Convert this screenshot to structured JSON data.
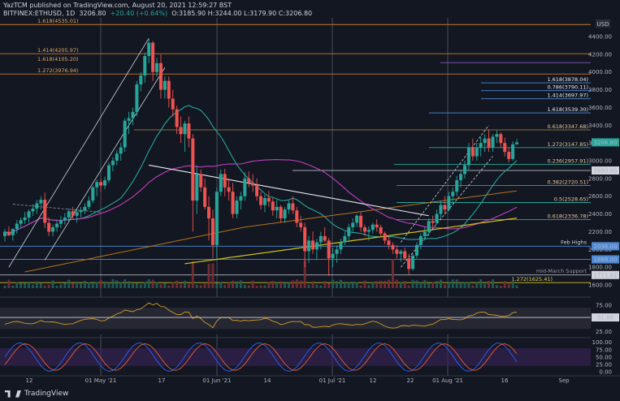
{
  "header": {
    "published": "YazTCM published on TradingView.com, August 20, 2021 12:59:27 BST",
    "symbol": "BITFINEX:ETHUSD, 1D",
    "last": "3206.80",
    "change": "+20.40 (+0.64%)",
    "ohlc": "O:3185.90 H:3244.00 L:3179.90 C:3206.80"
  },
  "footer": {
    "brand": "TradingView"
  },
  "colors": {
    "bg": "#131722",
    "up": "#26a69a",
    "down": "#ef5350",
    "sma20": "#26a69a",
    "sma50": "#c040c0",
    "sma100": "#b5731e",
    "sma200": "#d4c21a",
    "fib": "#c87a2a",
    "text": "#d1d4dc"
  },
  "chart_data": {
    "type": "candlestick",
    "currency": "USD",
    "interval": "1D",
    "x_tick_labels": [
      "12",
      "01 May '21",
      "17",
      "01 Jun '21",
      "14",
      "01 Jul '21",
      "12",
      "22",
      "01 Aug '21",
      "16",
      "Sep"
    ],
    "y_tick_labels": [
      "4400.00",
      "4200.00",
      "4000.00",
      "3800.00",
      "3600.00",
      "3400.00",
      "3200.00",
      "3000.00",
      "2800.00",
      "2600.00",
      "2400.00",
      "2200.00",
      "2000.00",
      "1800.00",
      "1600.00"
    ],
    "ylim": [
      1580,
      4540
    ],
    "last_price_label": "3206.80",
    "price_tags": [
      "2890.00",
      "2036.00",
      "1888.00",
      "1711.82"
    ],
    "levels": [
      {
        "label": "1.618(4535.01)",
        "price": 4535.01
      },
      {
        "label": "1.414(4205.97)",
        "price": 4205.97
      },
      {
        "label": "1.272(3976.94)",
        "price": 3976.94
      },
      {
        "label": "1.618(4105.20)",
        "price": 4105.2
      },
      {
        "label": "1.618(3878.04)",
        "price": 3878.04
      },
      {
        "label": "0.786(3790.11)",
        "price": 3790.11
      },
      {
        "label": "1.414(3697.97)",
        "price": 3697.97
      },
      {
        "label": "1.618(3539.30)",
        "price": 3539.3
      },
      {
        "label": "0.618(3347.68)",
        "price": 3347.68
      },
      {
        "label": "1.272(3147.85)",
        "price": 3147.85
      },
      {
        "label": "0.236(2957.91)",
        "price": 2957.91
      },
      {
        "label": "0.382(2720.51)",
        "price": 2720.51
      },
      {
        "label": "0.5(2528.65)",
        "price": 2528.65
      },
      {
        "label": "0.618(2336.78)",
        "price": 2336.78
      },
      {
        "label": "1.272(1625.41)",
        "price": 1625.41
      }
    ],
    "annotations": [
      "Feb Highs",
      "mid-March Support"
    ],
    "rsi": {
      "value_label": "51.88",
      "value": 51.88,
      "ylim": [
        20,
        90
      ],
      "ticks": [
        "75.00",
        "50.00",
        "25.00"
      ]
    },
    "stoch": {
      "ylim": [
        -5,
        110
      ],
      "ticks": [
        "100.00",
        "75.00",
        "50.00",
        "25.00",
        "0.00"
      ]
    },
    "candles_ohlc": [
      [
        2150,
        2230,
        2090,
        2200
      ],
      [
        2200,
        2260,
        2150,
        2160
      ],
      [
        2160,
        2240,
        2100,
        2230
      ],
      [
        2230,
        2330,
        2180,
        2290
      ],
      [
        2290,
        2360,
        2250,
        2330
      ],
      [
        2330,
        2420,
        2290,
        2360
      ],
      [
        2360,
        2450,
        2300,
        2430
      ],
      [
        2430,
        2510,
        2380,
        2460
      ],
      [
        2460,
        2560,
        2400,
        2520
      ],
      [
        2520,
        2600,
        2450,
        2560
      ],
      [
        2560,
        2640,
        2240,
        2300
      ],
      [
        2300,
        2360,
        2150,
        2200
      ],
      [
        2200,
        2280,
        2150,
        2250
      ],
      [
        2250,
        2340,
        2200,
        2290
      ],
      [
        2290,
        2380,
        2240,
        2330
      ],
      [
        2330,
        2410,
        2280,
        2360
      ],
      [
        2360,
        2460,
        2320,
        2430
      ],
      [
        2430,
        2480,
        2340,
        2380
      ],
      [
        2380,
        2450,
        2300,
        2420
      ],
      [
        2420,
        2480,
        2360,
        2440
      ],
      [
        2440,
        2520,
        2400,
        2480
      ],
      [
        2480,
        2600,
        2450,
        2550
      ],
      [
        2550,
        2720,
        2520,
        2700
      ],
      [
        2700,
        2790,
        2600,
        2760
      ],
      [
        2760,
        2800,
        2650,
        2720
      ],
      [
        2720,
        2820,
        2680,
        2780
      ],
      [
        2780,
        2980,
        2750,
        2950
      ],
      [
        2950,
        3040,
        2880,
        3000
      ],
      [
        3000,
        3120,
        2950,
        3080
      ],
      [
        3080,
        3200,
        3000,
        3150
      ],
      [
        3150,
        3480,
        3100,
        3450
      ],
      [
        3450,
        3550,
        3300,
        3480
      ],
      [
        3480,
        3600,
        3400,
        3550
      ],
      [
        3550,
        3900,
        3500,
        3860
      ],
      [
        3860,
        4000,
        3780,
        3960
      ],
      [
        3960,
        4220,
        3880,
        4180
      ],
      [
        4180,
        4380,
        4100,
        4330
      ],
      [
        4330,
        4350,
        3900,
        4000
      ],
      [
        4000,
        4160,
        3950,
        4100
      ],
      [
        4100,
        4200,
        3700,
        3800
      ],
      [
        3800,
        3950,
        3700,
        3900
      ],
      [
        3900,
        3950,
        3600,
        3700
      ],
      [
        3700,
        3800,
        3500,
        3580
      ],
      [
        3580,
        3620,
        3300,
        3380
      ],
      [
        3380,
        3500,
        3200,
        3300
      ],
      [
        3300,
        3450,
        3100,
        3420
      ],
      [
        3420,
        3500,
        3150,
        3250
      ],
      [
        3250,
        3300,
        2200,
        2550
      ],
      [
        2550,
        2950,
        2400,
        2850
      ],
      [
        2850,
        2900,
        2650,
        2700
      ],
      [
        2700,
        2800,
        2450,
        2480
      ],
      [
        2480,
        2600,
        2100,
        2350
      ],
      [
        2350,
        2450,
        1900,
        2050
      ],
      [
        2050,
        2700,
        1900,
        2650
      ],
      [
        2650,
        2900,
        2600,
        2850
      ],
      [
        2850,
        2910,
        2600,
        2700
      ],
      [
        2700,
        2800,
        2550,
        2650
      ],
      [
        2650,
        2750,
        2350,
        2400
      ],
      [
        2400,
        2600,
        2350,
        2550
      ],
      [
        2550,
        2650,
        2450,
        2600
      ],
      [
        2600,
        2870,
        2550,
        2800
      ],
      [
        2800,
        2880,
        2700,
        2750
      ],
      [
        2750,
        2850,
        2650,
        2720
      ],
      [
        2720,
        2800,
        2550,
        2600
      ],
      [
        2600,
        2650,
        2450,
        2500
      ],
      [
        2500,
        2620,
        2420,
        2580
      ],
      [
        2580,
        2660,
        2480,
        2540
      ],
      [
        2540,
        2580,
        2380,
        2440
      ],
      [
        2440,
        2560,
        2350,
        2480
      ],
      [
        2480,
        2500,
        2300,
        2350
      ],
      [
        2350,
        2480,
        2300,
        2450
      ],
      [
        2450,
        2550,
        2400,
        2520
      ],
      [
        2520,
        2600,
        2400,
        2440
      ],
      [
        2440,
        2480,
        2250,
        2300
      ],
      [
        2300,
        2380,
        2200,
        2250
      ],
      [
        2250,
        2300,
        1800,
        1980
      ],
      [
        1980,
        2150,
        1850,
        2100
      ],
      [
        2100,
        2200,
        1950,
        2000
      ],
      [
        2000,
        2120,
        1880,
        2080
      ],
      [
        2080,
        2200,
        2000,
        2150
      ],
      [
        2150,
        2250,
        2080,
        2100
      ],
      [
        2100,
        2130,
        1700,
        1900
      ],
      [
        1900,
        2020,
        1800,
        1950
      ],
      [
        1950,
        2050,
        1850,
        2000
      ],
      [
        2000,
        2120,
        1950,
        2080
      ],
      [
        2080,
        2200,
        2050,
        2150
      ],
      [
        2150,
        2290,
        2100,
        2250
      ],
      [
        2250,
        2350,
        2200,
        2300
      ],
      [
        2300,
        2400,
        2250,
        2380
      ],
      [
        2380,
        2420,
        2200,
        2250
      ],
      [
        2250,
        2280,
        2150,
        2200
      ],
      [
        2200,
        2260,
        2100,
        2220
      ],
      [
        2220,
        2300,
        2180,
        2280
      ],
      [
        2280,
        2340,
        2200,
        2250
      ],
      [
        2250,
        2280,
        2150,
        2180
      ],
      [
        2180,
        2200,
        2060,
        2100
      ],
      [
        2100,
        2150,
        2000,
        2050
      ],
      [
        2050,
        2080,
        1950,
        2000
      ],
      [
        2000,
        2050,
        1900,
        1950
      ],
      [
        1950,
        2000,
        1860,
        1980
      ],
      [
        1980,
        2020,
        1880,
        1900
      ],
      [
        1900,
        1950,
        1720,
        1780
      ],
      [
        1780,
        1950,
        1760,
        1930
      ],
      [
        1930,
        2080,
        1900,
        2050
      ],
      [
        2050,
        2180,
        2000,
        2150
      ],
      [
        2150,
        2250,
        2100,
        2200
      ],
      [
        2200,
        2350,
        2150,
        2320
      ],
      [
        2320,
        2380,
        2250,
        2300
      ],
      [
        2300,
        2450,
        2280,
        2400
      ],
      [
        2400,
        2550,
        2350,
        2500
      ],
      [
        2500,
        2600,
        2400,
        2450
      ],
      [
        2450,
        2650,
        2430,
        2600
      ],
      [
        2600,
        2700,
        2500,
        2650
      ],
      [
        2650,
        2830,
        2600,
        2780
      ],
      [
        2780,
        2900,
        2700,
        2850
      ],
      [
        2850,
        3000,
        2800,
        2950
      ],
      [
        2950,
        3200,
        2900,
        3150
      ],
      [
        3150,
        3250,
        3000,
        3050
      ],
      [
        3050,
        3200,
        3000,
        3150
      ],
      [
        3150,
        3270,
        3050,
        3200
      ],
      [
        3200,
        3300,
        3100,
        3250
      ],
      [
        3250,
        3350,
        3100,
        3150
      ],
      [
        3150,
        3300,
        3100,
        3270
      ],
      [
        3270,
        3340,
        3200,
        3300
      ],
      [
        3300,
        3320,
        3150,
        3200
      ],
      [
        3200,
        3260,
        3050,
        3100
      ],
      [
        3100,
        3150,
        2980,
        3020
      ],
      [
        3020,
        3220,
        3000,
        3185
      ],
      [
        3185,
        3244,
        3180,
        3207
      ]
    ]
  }
}
